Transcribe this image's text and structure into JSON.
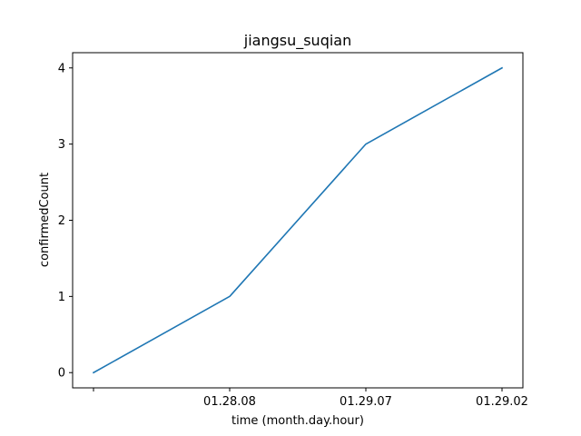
{
  "chart_data": {
    "type": "line",
    "title": "jiangsu_suqian",
    "xlabel": "time (month.day.hour)",
    "ylabel": "confirmedCount",
    "categories": [
      "",
      "01.28.08",
      "01.29.07",
      "01.29.02"
    ],
    "series": [
      {
        "values": [
          0,
          1,
          3,
          4
        ],
        "color": "#1f77b4"
      }
    ],
    "ylim": [
      -0.2,
      4.2
    ],
    "yticks": [
      0,
      1,
      2,
      3,
      4
    ],
    "grid": false
  }
}
